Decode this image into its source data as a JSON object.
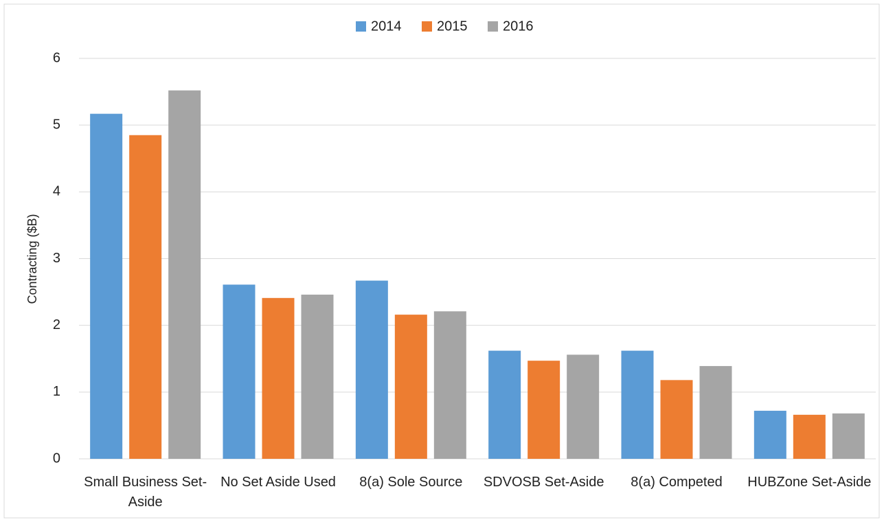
{
  "chart_data": {
    "type": "bar",
    "categories": [
      "Small Business Set-Aside",
      "No Set Aside Used",
      "8(a) Sole Source",
      "SDVOSB Set-Aside",
      "8(a) Competed",
      "HUBZone Set-Aside"
    ],
    "series": [
      {
        "name": "2014",
        "color": "#5b9bd5",
        "values": [
          5.17,
          2.61,
          2.67,
          1.62,
          1.62,
          0.72
        ]
      },
      {
        "name": "2015",
        "color": "#ed7d31",
        "values": [
          4.85,
          2.41,
          2.16,
          1.47,
          1.18,
          0.66
        ]
      },
      {
        "name": "2016",
        "color": "#a5a5a5",
        "values": [
          5.52,
          2.46,
          2.21,
          1.56,
          1.39,
          0.68
        ]
      }
    ],
    "y_label": "Contracting ($B)",
    "ylim": [
      0,
      6
    ],
    "yticks": [
      0,
      1,
      2,
      3,
      4,
      5,
      6
    ],
    "grid": true,
    "legend": "top"
  }
}
